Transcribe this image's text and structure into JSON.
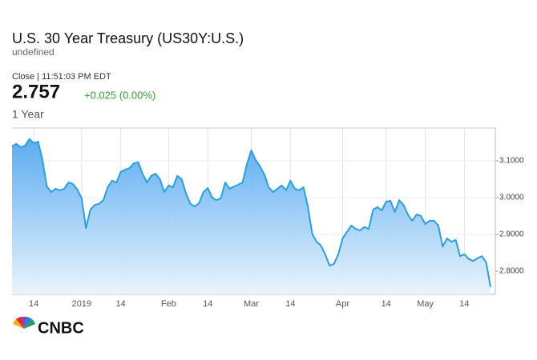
{
  "chart_data": {
    "type": "line",
    "title": "U.S. 30 Year Treasury (US30Y:U.S.)",
    "categories": [
      null,
      null,
      null,
      null,
      null,
      "14",
      null,
      null,
      null,
      null,
      null,
      null,
      null,
      null,
      null,
      null,
      "2019",
      null,
      null,
      null,
      null,
      null,
      null,
      null,
      null,
      "14",
      null,
      null,
      null,
      null,
      null,
      null,
      null,
      null,
      null,
      null,
      "Feb",
      null,
      null,
      null,
      null,
      null,
      null,
      null,
      null,
      "14",
      null,
      null,
      null,
      null,
      null,
      null,
      null,
      null,
      null,
      "Mar",
      null,
      null,
      null,
      null,
      null,
      null,
      null,
      null,
      "14",
      null,
      null,
      null,
      null,
      null,
      null,
      null,
      null,
      null,
      null,
      null,
      "Apr",
      null,
      null,
      null,
      null,
      null,
      null,
      null,
      null,
      null,
      "14",
      null,
      null,
      null,
      null,
      null,
      null,
      null,
      null,
      "May",
      null,
      null,
      null,
      null,
      null,
      null,
      null,
      null,
      "14",
      null,
      null,
      null,
      null,
      null,
      null
    ],
    "values": [
      3.139,
      3.146,
      3.137,
      3.141,
      3.159,
      3.148,
      3.152,
      3.102,
      3.03,
      3.015,
      3.024,
      3.02,
      3.024,
      3.041,
      3.037,
      3.022,
      2.998,
      2.917,
      2.967,
      2.98,
      2.983,
      2.993,
      3.028,
      3.046,
      3.041,
      3.07,
      3.076,
      3.08,
      3.093,
      3.096,
      3.065,
      3.041,
      3.059,
      3.065,
      3.05,
      3.015,
      3.033,
      3.028,
      3.059,
      3.05,
      3.011,
      2.983,
      2.976,
      2.985,
      3.015,
      3.026,
      3.0,
      2.993,
      2.998,
      3.041,
      3.024,
      3.03,
      3.035,
      3.041,
      3.091,
      3.128,
      3.102,
      3.085,
      3.063,
      3.028,
      3.015,
      3.024,
      3.033,
      3.02,
      3.046,
      3.024,
      3.02,
      3.028,
      2.976,
      2.902,
      2.88,
      2.87,
      2.846,
      2.815,
      2.82,
      2.846,
      2.889,
      2.907,
      2.924,
      2.915,
      2.911,
      2.92,
      2.915,
      2.967,
      2.974,
      2.965,
      2.989,
      2.991,
      2.961,
      2.993,
      2.98,
      2.954,
      2.937,
      2.954,
      2.95,
      2.928,
      2.937,
      2.937,
      2.924,
      2.867,
      2.889,
      2.88,
      2.885,
      2.841,
      2.846,
      2.833,
      2.828,
      2.835,
      2.841,
      2.824,
      2.757
    ],
    "color": "#2b9fdc",
    "area": true,
    "ylim": [
      2.737,
      3.189
    ],
    "yticks": [
      {
        "value": 2.8,
        "label": "2.8000"
      },
      {
        "value": 2.9,
        "label": "2.9000"
      },
      {
        "value": 3.0,
        "label": "3.0000"
      },
      {
        "value": 3.1,
        "label": "3.1000"
      }
    ],
    "grid": true
  },
  "quote": {
    "subtitle": "undefined",
    "close_label": "Close | 11:51:03 PM EDT",
    "last": "2.757",
    "change": "+0.025 (0.00%)",
    "period": "1 Year"
  },
  "brand": "CNBC"
}
